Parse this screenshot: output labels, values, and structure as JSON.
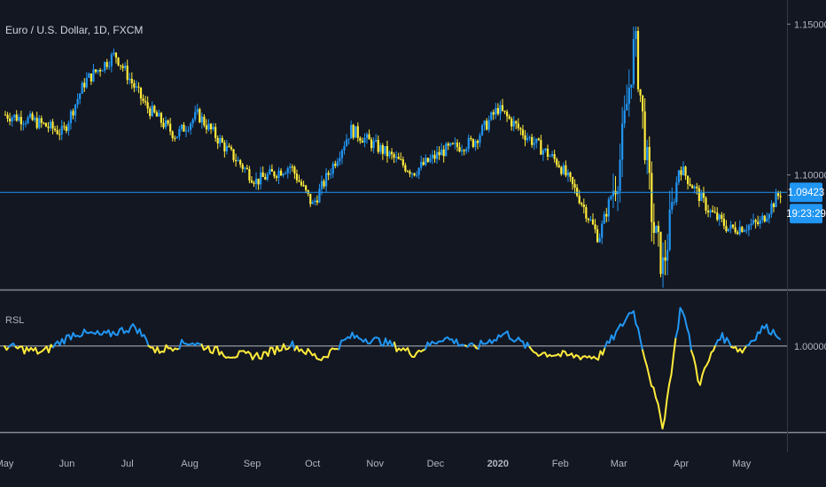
{
  "header": {
    "symbol_title": "Euro / U.S. Dollar, 1D, FXCM"
  },
  "price_axis": {
    "ticks": [
      {
        "label": "1.15000",
        "value": 1.15
      },
      {
        "label": "1.10000",
        "value": 1.1
      }
    ],
    "current_price_label": "1.09423",
    "countdown_label": "19:23:29"
  },
  "indicator": {
    "name": "RSL",
    "ticks": [
      {
        "label": "1.00000",
        "value": 1.0
      }
    ]
  },
  "time_axis": {
    "labels": [
      "May",
      "Jun",
      "Jul",
      "Aug",
      "Sep",
      "Oct",
      "Nov",
      "Dec",
      "2020",
      "Feb",
      "Mar",
      "Apr",
      "May"
    ]
  },
  "colors": {
    "background": "#131722",
    "up": "#2196f3",
    "down": "#ffeb3b",
    "price_line": "#2196f3",
    "text": "#b2b5be",
    "grid_line": "#868993",
    "price_badge": "#2196f3"
  },
  "chart_data": [
    {
      "type": "candlestick",
      "title": "Euro / U.S. Dollar, 1D, FXCM",
      "x": [
        "2019-05",
        "2019-06",
        "2019-07",
        "2019-08",
        "2019-09",
        "2019-10",
        "2019-11",
        "2019-12",
        "2020-01",
        "2020-02",
        "2020-03",
        "2020-04",
        "2020-05"
      ],
      "close_profile": [
        [
          "2019-05-01",
          1.12
        ],
        [
          "2019-05-15",
          1.118
        ],
        [
          "2019-05-30",
          1.114
        ],
        [
          "2019-06-10",
          1.131
        ],
        [
          "2019-06-25",
          1.14
        ],
        [
          "2019-07-10",
          1.123
        ],
        [
          "2019-07-25",
          1.113
        ],
        [
          "2019-08-05",
          1.12
        ],
        [
          "2019-08-20",
          1.108
        ],
        [
          "2019-09-03",
          1.098
        ],
        [
          "2019-09-20",
          1.103
        ],
        [
          "2019-10-01",
          1.09
        ],
        [
          "2019-10-20",
          1.115
        ],
        [
          "2019-11-05",
          1.108
        ],
        [
          "2019-11-20",
          1.101
        ],
        [
          "2019-12-05",
          1.108
        ],
        [
          "2019-12-20",
          1.111
        ],
        [
          "2020-01-01",
          1.122
        ],
        [
          "2020-01-15",
          1.113
        ],
        [
          "2020-01-31",
          1.104
        ],
        [
          "2020-02-10",
          1.093
        ],
        [
          "2020-02-20",
          1.079
        ],
        [
          "2020-03-01",
          1.102
        ],
        [
          "2020-03-09",
          1.145
        ],
        [
          "2020-03-18",
          1.083
        ],
        [
          "2020-03-23",
          1.069
        ],
        [
          "2020-03-31",
          1.103
        ],
        [
          "2020-04-15",
          1.088
        ],
        [
          "2020-04-25",
          1.082
        ],
        [
          "2020-05-10",
          1.084
        ],
        [
          "2020-05-20",
          1.094
        ]
      ],
      "last_close": 1.09423,
      "ylim": [
        1.062,
        1.158
      ],
      "grid": false
    },
    {
      "type": "line",
      "title": "RSL",
      "series": [
        {
          "points": [
            [
              "2019-05-01",
              1.0
            ],
            [
              "2019-05-20",
              0.994
            ],
            [
              "2019-06-05",
              1.012
            ],
            [
              "2019-06-20",
              1.01
            ],
            [
              "2019-07-05",
              1.018
            ],
            [
              "2019-07-15",
              0.995
            ],
            [
              "2019-08-01",
              1.004
            ],
            [
              "2019-08-20",
              0.992
            ],
            [
              "2019-09-05",
              0.991
            ],
            [
              "2019-09-20",
              1.002
            ],
            [
              "2019-10-05",
              0.988
            ],
            [
              "2019-10-20",
              1.009
            ],
            [
              "2019-11-05",
              1.004
            ],
            [
              "2019-11-20",
              0.993
            ],
            [
              "2019-12-05",
              1.008
            ],
            [
              "2019-12-20",
              0.998
            ],
            [
              "2020-01-05",
              1.012
            ],
            [
              "2020-01-20",
              0.994
            ],
            [
              "2020-02-05",
              0.991
            ],
            [
              "2020-02-20",
              0.99
            ],
            [
              "2020-03-01",
              1.015
            ],
            [
              "2020-03-08",
              1.035
            ],
            [
              "2020-03-18",
              0.96
            ],
            [
              "2020-03-23",
              0.925
            ],
            [
              "2020-04-01",
              1.04
            ],
            [
              "2020-04-10",
              0.965
            ],
            [
              "2020-04-20",
              1.01
            ],
            [
              "2020-05-01",
              0.995
            ],
            [
              "2020-05-12",
              1.018
            ],
            [
              "2020-05-20",
              1.01
            ]
          ]
        }
      ],
      "reference_line": 1.0,
      "ylim": [
        0.92,
        1.05
      ]
    }
  ]
}
